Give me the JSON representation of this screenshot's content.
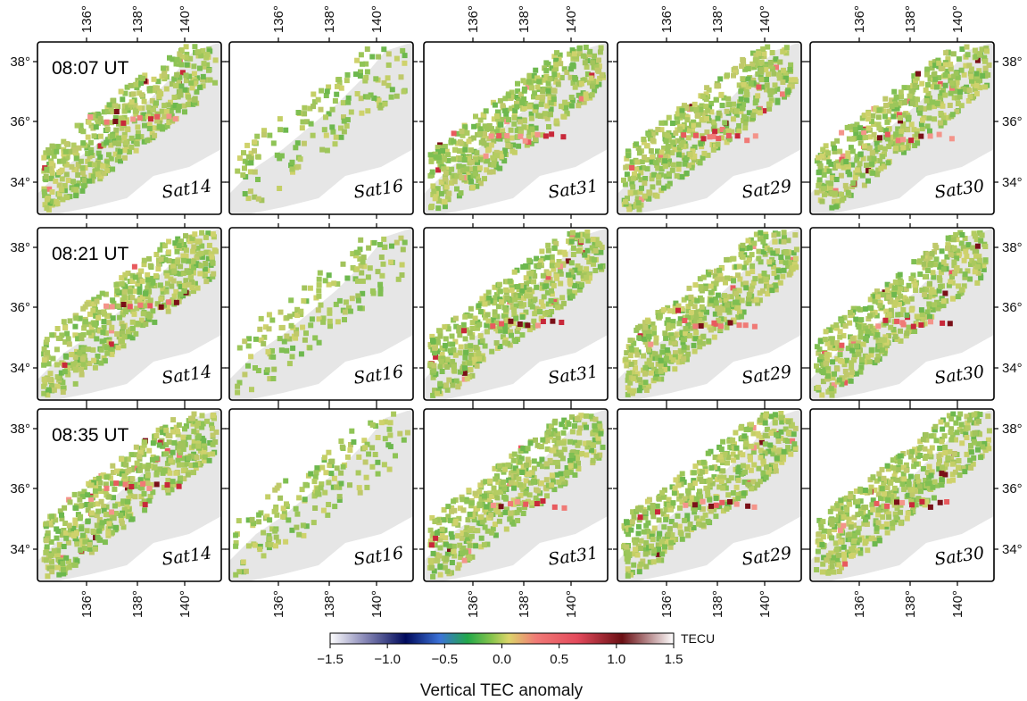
{
  "figure": {
    "time_labels": [
      "08:07 UT",
      "08:21 UT",
      "08:35 UT"
    ],
    "satellite_labels": [
      "Sat14",
      "Sat16",
      "Sat31",
      "Sat29",
      "Sat30"
    ],
    "lon_ticks": [
      "136°",
      "138°",
      "140°"
    ],
    "lat_ticks": [
      "38°",
      "36°",
      "34°"
    ]
  },
  "colorbar": {
    "title": "Vertical TEC anomaly",
    "unit": "TECU",
    "ticks": [
      "−1.5",
      "−1.0",
      "−0.5",
      "0.0",
      "0.5",
      "1.0",
      "1.5"
    ],
    "range": [
      -1.5,
      1.5
    ],
    "colors": [
      "#ffffff",
      "#4a4aa6",
      "#000a5c",
      "#3c73d8",
      "#22a84a",
      "#86c44c",
      "#dcd56a",
      "#f07a76",
      "#e44a5c",
      "#6a0f14",
      "#ffffff"
    ]
  }
}
